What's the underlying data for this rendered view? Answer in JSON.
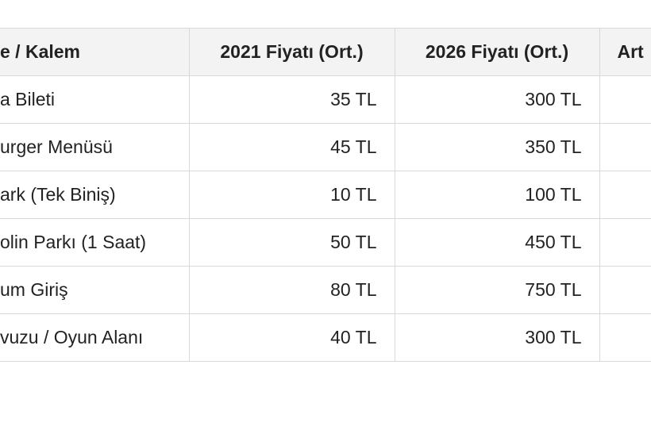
{
  "table": {
    "header": [
      "e / Kalem",
      "2021 Fiyatı (Ort.)",
      "2026 Fiyatı (Ort.)",
      "Art"
    ],
    "rows": [
      [
        "a Bileti",
        "35 TL",
        "300 TL"
      ],
      [
        "urger Menüsü",
        "45 TL",
        "350 TL"
      ],
      [
        "ark (Tek Biniş)",
        "10 TL",
        "100 TL"
      ],
      [
        "olin Parkı (1 Saat)",
        "50 TL",
        "450 TL"
      ],
      [
        "um Giriş",
        "80 TL",
        "750 TL"
      ],
      [
        "vuzu / Oyun Alanı",
        "40 TL",
        "300 TL"
      ]
    ]
  }
}
